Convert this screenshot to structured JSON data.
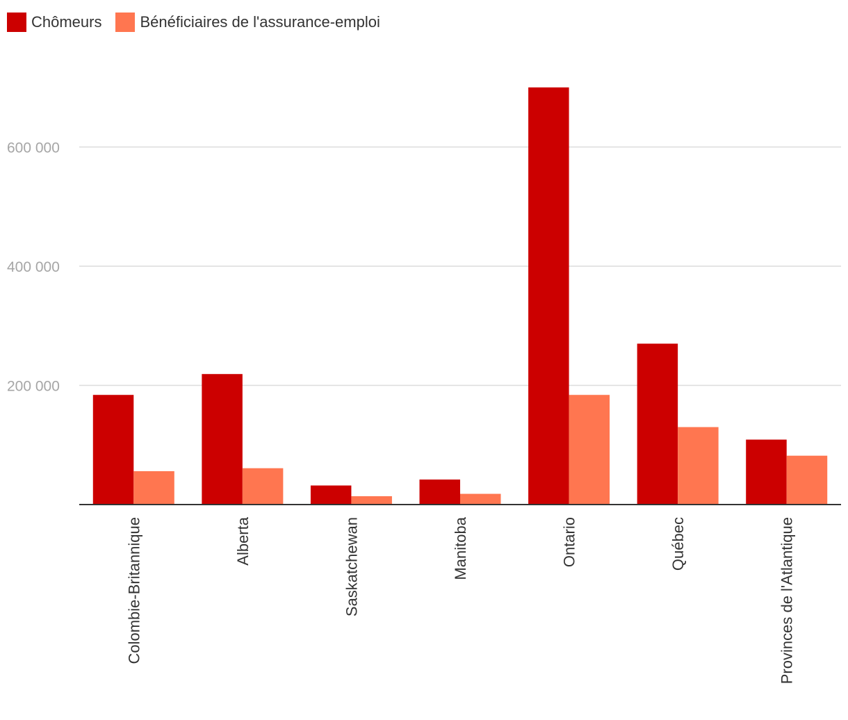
{
  "colors": {
    "chomeurs": "#cc0000",
    "beneficiaires": "#ff7650",
    "grid": "#dcdcdc",
    "axis": "#333333"
  },
  "chart_data": {
    "type": "bar",
    "title": "",
    "xlabel": "",
    "ylabel": "",
    "ylim": [
      0,
      720000
    ],
    "yticks": [
      {
        "value": 200000,
        "label": "200 000"
      },
      {
        "value": 400000,
        "label": "400 000"
      },
      {
        "value": 600000,
        "label": "600 000"
      }
    ],
    "legend_position": "top-left",
    "categories": [
      "Colombie-Britannique",
      "Alberta",
      "Saskatchewan",
      "Manitoba",
      "Ontario",
      "Québec",
      "Provinces de l'Atlantique"
    ],
    "series": [
      {
        "name": "Chômeurs",
        "color_key": "chomeurs",
        "values": [
          184000,
          219000,
          32000,
          42000,
          700000,
          270000,
          109000
        ]
      },
      {
        "name": "Bénéficiaires de l'assurance-emploi",
        "color_key": "beneficiaires",
        "values": [
          56000,
          61000,
          14000,
          18000,
          184000,
          130000,
          82000
        ]
      }
    ]
  }
}
